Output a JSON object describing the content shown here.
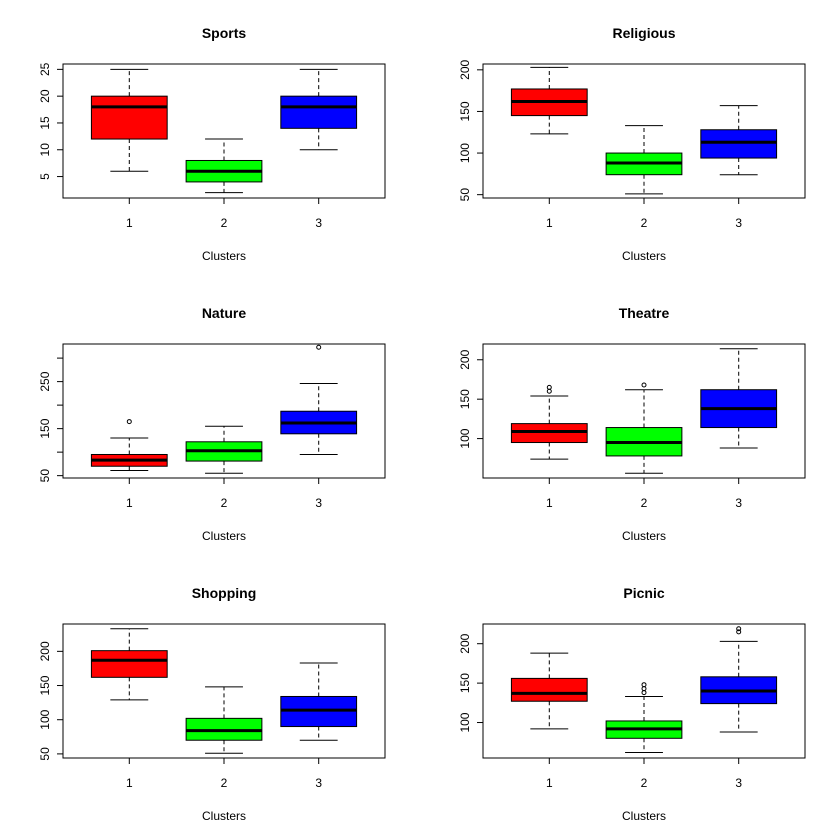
{
  "figure": {
    "background": "#ffffff",
    "cluster_colors": [
      "#ff0000",
      "#00ff00",
      "#0000ff"
    ]
  },
  "chart_data": [
    {
      "type": "box",
      "title": "Sports",
      "xlabel": "Clusters",
      "categories": [
        "1",
        "2",
        "3"
      ],
      "ylim": [
        1,
        26
      ],
      "yticks": [
        5,
        10,
        15,
        20,
        25
      ],
      "boxes": [
        {
          "whisker_low": 6,
          "q1": 12,
          "median": 18,
          "q3": 20,
          "whisker_high": 25,
          "outliers": []
        },
        {
          "whisker_low": 2,
          "q1": 4,
          "median": 6,
          "q3": 8,
          "whisker_high": 12,
          "outliers": []
        },
        {
          "whisker_low": 10,
          "q1": 14,
          "median": 18,
          "q3": 20,
          "whisker_high": 25,
          "outliers": []
        }
      ]
    },
    {
      "type": "box",
      "title": "Religious",
      "xlabel": "Clusters",
      "categories": [
        "1",
        "2",
        "3"
      ],
      "ylim": [
        46,
        207
      ],
      "yticks": [
        50,
        100,
        150,
        200
      ],
      "boxes": [
        {
          "whisker_low": 123,
          "q1": 145,
          "median": 162,
          "q3": 177,
          "whisker_high": 203,
          "outliers": []
        },
        {
          "whisker_low": 51,
          "q1": 74,
          "median": 88,
          "q3": 100,
          "whisker_high": 133,
          "outliers": []
        },
        {
          "whisker_low": 74,
          "q1": 94,
          "median": 113,
          "q3": 128,
          "whisker_high": 157,
          "outliers": []
        }
      ]
    },
    {
      "type": "box",
      "title": "Nature",
      "xlabel": "Clusters",
      "categories": [
        "1",
        "2",
        "3"
      ],
      "ylim": [
        45,
        330
      ],
      "yticks": [
        50,
        150,
        250
      ],
      "minor_ticks": [
        100,
        200,
        300
      ],
      "boxes": [
        {
          "whisker_low": 61,
          "q1": 70,
          "median": 83,
          "q3": 95,
          "whisker_high": 130,
          "outliers": [
            165
          ]
        },
        {
          "whisker_low": 55,
          "q1": 81,
          "median": 103,
          "q3": 122,
          "whisker_high": 155,
          "outliers": []
        },
        {
          "whisker_low": 95,
          "q1": 139,
          "median": 162,
          "q3": 187,
          "whisker_high": 246,
          "outliers": [
            323
          ]
        }
      ]
    },
    {
      "type": "box",
      "title": "Theatre",
      "xlabel": "Clusters",
      "categories": [
        "1",
        "2",
        "3"
      ],
      "ylim": [
        50,
        220
      ],
      "yticks": [
        100,
        150,
        200
      ],
      "boxes": [
        {
          "whisker_low": 74,
          "q1": 95,
          "median": 109,
          "q3": 119,
          "whisker_high": 154,
          "outliers": [
            160,
            165
          ]
        },
        {
          "whisker_low": 56,
          "q1": 78,
          "median": 95,
          "q3": 114,
          "whisker_high": 162,
          "outliers": [
            168
          ]
        },
        {
          "whisker_low": 88,
          "q1": 114,
          "median": 138,
          "q3": 162,
          "whisker_high": 214,
          "outliers": []
        }
      ]
    },
    {
      "type": "box",
      "title": "Shopping",
      "xlabel": "Clusters",
      "categories": [
        "1",
        "2",
        "3"
      ],
      "ylim": [
        44,
        240
      ],
      "yticks": [
        50,
        100,
        150,
        200
      ],
      "boxes": [
        {
          "whisker_low": 129,
          "q1": 162,
          "median": 187,
          "q3": 201,
          "whisker_high": 233,
          "outliers": []
        },
        {
          "whisker_low": 51,
          "q1": 70,
          "median": 84,
          "q3": 102,
          "whisker_high": 148,
          "outliers": []
        },
        {
          "whisker_low": 70,
          "q1": 90,
          "median": 114,
          "q3": 134,
          "whisker_high": 183,
          "outliers": []
        }
      ]
    },
    {
      "type": "box",
      "title": "Picnic",
      "xlabel": "Clusters",
      "categories": [
        "1",
        "2",
        "3"
      ],
      "ylim": [
        55,
        225
      ],
      "yticks": [
        100,
        150,
        200
      ],
      "boxes": [
        {
          "whisker_low": 92,
          "q1": 127,
          "median": 137,
          "q3": 156,
          "whisker_high": 188,
          "outliers": []
        },
        {
          "whisker_low": 62,
          "q1": 80,
          "median": 92,
          "q3": 102,
          "whisker_high": 133,
          "outliers": [
            138,
            143,
            148
          ]
        },
        {
          "whisker_low": 88,
          "q1": 124,
          "median": 140,
          "q3": 158,
          "whisker_high": 203,
          "outliers": [
            215,
            219
          ]
        }
      ]
    }
  ]
}
